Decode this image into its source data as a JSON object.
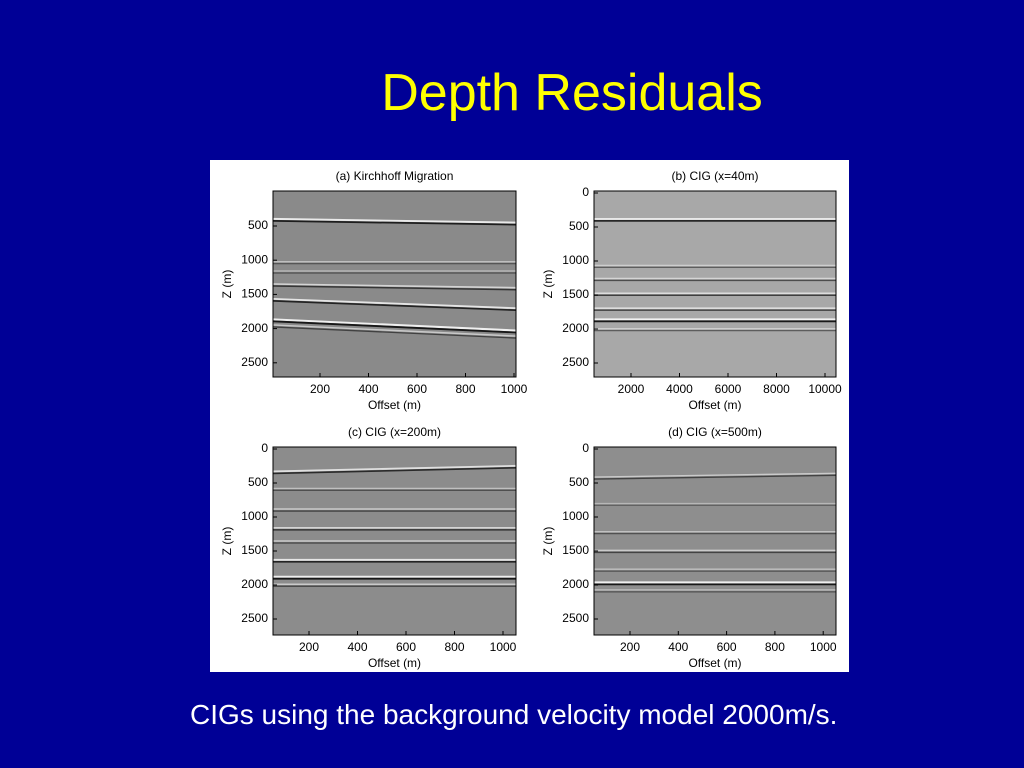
{
  "header": {
    "title": "Depth Residuals"
  },
  "panels": [
    {
      "title": "(a) Kirchhoff Migration",
      "x_label": "Offset (m)",
      "y_label": "Z (m)",
      "xticks": [
        200,
        400,
        600,
        800,
        1000
      ],
      "yticks": [
        500,
        1000,
        1500,
        2000,
        2500
      ]
    },
    {
      "title": "(b) CIG (x=40m)",
      "x_label": "Offset (m)",
      "y_label": "Z (m)",
      "xticks": [
        2000,
        4000,
        6000,
        8000,
        10000
      ],
      "yticks": [
        0,
        500,
        1000,
        1500,
        2000,
        2500
      ]
    },
    {
      "title": "(c) CIG (x=200m)",
      "x_label": "Offset (m)",
      "y_label": "Z (m)",
      "xticks": [
        200,
        400,
        600,
        800,
        1000
      ],
      "yticks": [
        0,
        500,
        1000,
        1500,
        2000,
        2500
      ]
    },
    {
      "title": "(d) CIG (x=500m)",
      "x_label": "Offset (m)",
      "y_label": "Z (m)",
      "xticks": [
        200,
        400,
        600,
        800,
        1000
      ],
      "yticks": [
        0,
        500,
        1000,
        1500,
        2000,
        2500
      ]
    }
  ],
  "caption": "CIGs using the background velocity model 2000m/s."
}
